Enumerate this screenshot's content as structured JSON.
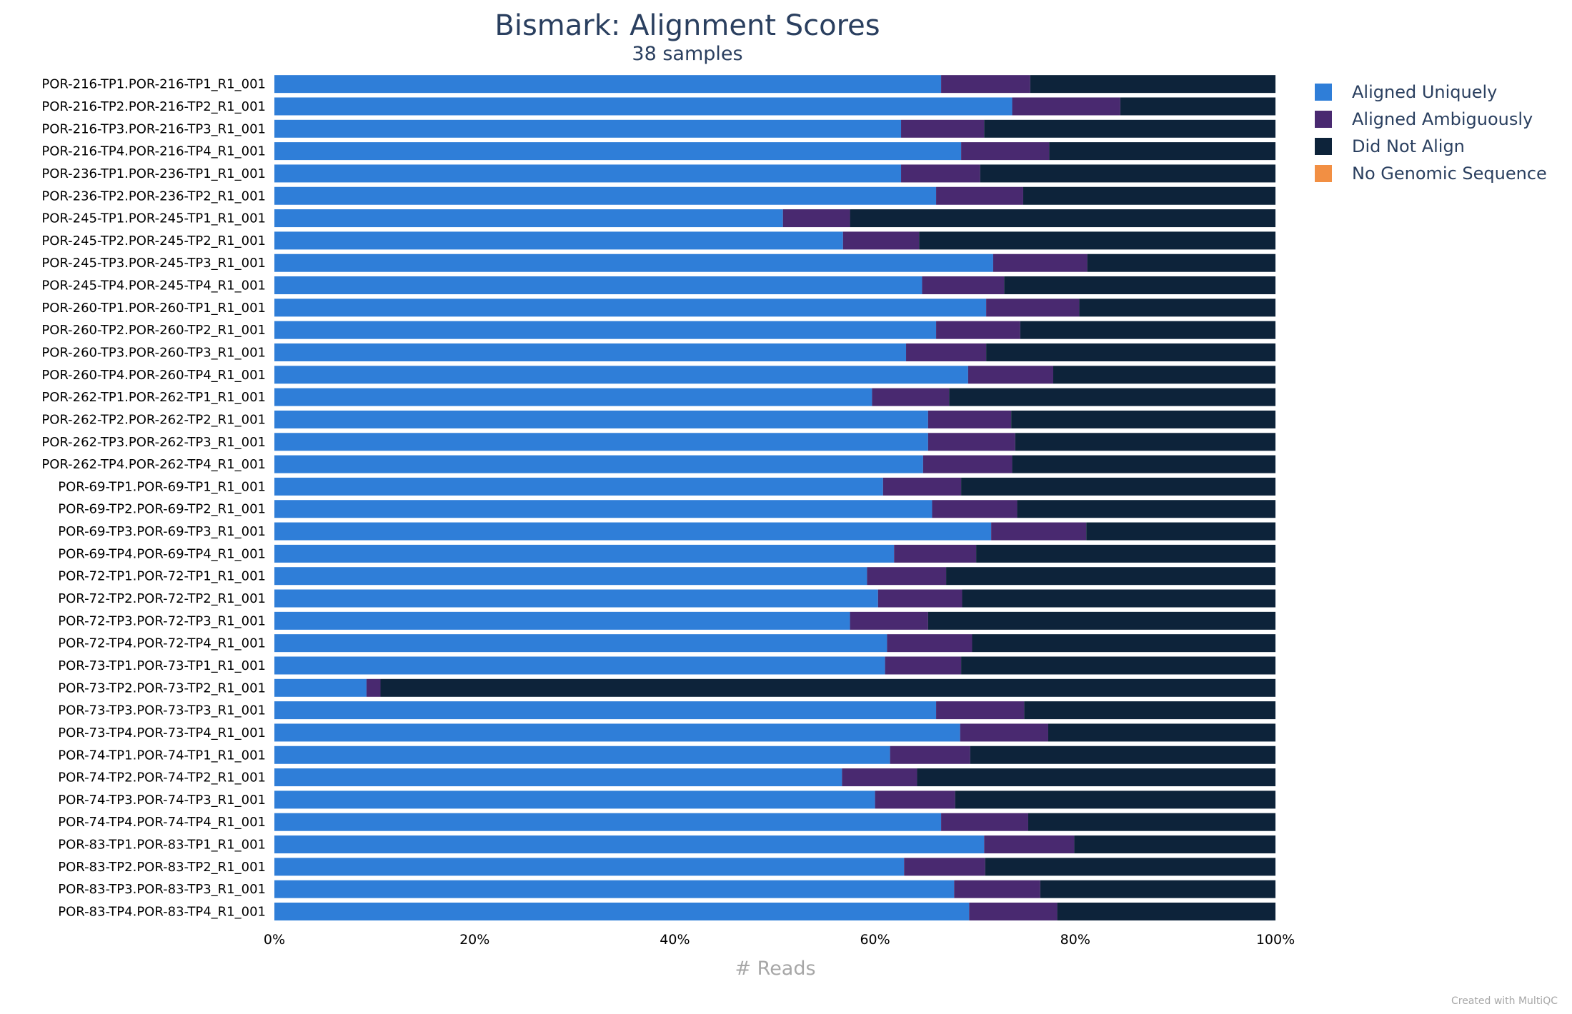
{
  "chart_data": {
    "type": "bar",
    "orientation": "horizontal",
    "stacked": true,
    "normalized": true,
    "title": "Bismark: Alignment Scores",
    "subtitle": "38 samples",
    "xlabel": "# Reads",
    "ylabel": "",
    "xlim": [
      0,
      100
    ],
    "xticks": [
      "0%",
      "20%",
      "40%",
      "60%",
      "80%",
      "100%"
    ],
    "legend_position": "top-right",
    "credit": "Created with MultiQC",
    "categories": [
      "POR-216-TP1.POR-216-TP1_R1_001",
      "POR-216-TP2.POR-216-TP2_R1_001",
      "POR-216-TP3.POR-216-TP3_R1_001",
      "POR-216-TP4.POR-216-TP4_R1_001",
      "POR-236-TP1.POR-236-TP1_R1_001",
      "POR-236-TP2.POR-236-TP2_R1_001",
      "POR-245-TP1.POR-245-TP1_R1_001",
      "POR-245-TP2.POR-245-TP2_R1_001",
      "POR-245-TP3.POR-245-TP3_R1_001",
      "POR-245-TP4.POR-245-TP4_R1_001",
      "POR-260-TP1.POR-260-TP1_R1_001",
      "POR-260-TP2.POR-260-TP2_R1_001",
      "POR-260-TP3.POR-260-TP3_R1_001",
      "POR-260-TP4.POR-260-TP4_R1_001",
      "POR-262-TP1.POR-262-TP1_R1_001",
      "POR-262-TP2.POR-262-TP2_R1_001",
      "POR-262-TP3.POR-262-TP3_R1_001",
      "POR-262-TP4.POR-262-TP4_R1_001",
      "POR-69-TP1.POR-69-TP1_R1_001",
      "POR-69-TP2.POR-69-TP2_R1_001",
      "POR-69-TP3.POR-69-TP3_R1_001",
      "POR-69-TP4.POR-69-TP4_R1_001",
      "POR-72-TP1.POR-72-TP1_R1_001",
      "POR-72-TP2.POR-72-TP2_R1_001",
      "POR-72-TP3.POR-72-TP3_R1_001",
      "POR-72-TP4.POR-72-TP4_R1_001",
      "POR-73-TP1.POR-73-TP1_R1_001",
      "POR-73-TP2.POR-73-TP2_R1_001",
      "POR-73-TP3.POR-73-TP3_R1_001",
      "POR-73-TP4.POR-73-TP4_R1_001",
      "POR-74-TP1.POR-74-TP1_R1_001",
      "POR-74-TP2.POR-74-TP2_R1_001",
      "POR-74-TP3.POR-74-TP3_R1_001",
      "POR-74-TP4.POR-74-TP4_R1_001",
      "POR-83-TP1.POR-83-TP1_R1_001",
      "POR-83-TP2.POR-83-TP2_R1_001",
      "POR-83-TP3.POR-83-TP3_R1_001",
      "POR-83-TP4.POR-83-TP4_R1_001"
    ],
    "series": [
      {
        "name": "Aligned Uniquely",
        "color": "#2f7ed8",
        "values": [
          66.6,
          73.7,
          62.6,
          68.6,
          62.6,
          66.1,
          50.8,
          56.8,
          71.8,
          64.7,
          71.1,
          66.1,
          63.1,
          69.3,
          59.7,
          65.3,
          65.3,
          64.8,
          60.8,
          65.7,
          71.6,
          61.9,
          59.2,
          60.3,
          57.5,
          61.2,
          61.0,
          9.2,
          66.1,
          68.5,
          61.5,
          56.7,
          60.0,
          66.6,
          70.9,
          62.9,
          67.9,
          69.4
        ]
      },
      {
        "name": "Aligned Ambiguously",
        "color": "#492970",
        "values": [
          8.9,
          10.8,
          8.3,
          8.8,
          7.9,
          8.7,
          6.7,
          7.6,
          9.4,
          8.2,
          9.3,
          8.4,
          8.0,
          8.5,
          7.7,
          8.3,
          8.7,
          8.9,
          7.8,
          8.5,
          9.5,
          8.2,
          7.9,
          8.4,
          7.8,
          8.5,
          7.6,
          1.4,
          8.8,
          8.8,
          8.0,
          7.5,
          8.0,
          8.7,
          9.0,
          8.1,
          8.6,
          8.8
        ]
      },
      {
        "name": "Did Not Align",
        "color": "#0d233a",
        "values": [
          24.5,
          15.5,
          29.1,
          22.6,
          29.5,
          25.2,
          42.5,
          35.6,
          18.8,
          27.1,
          19.6,
          25.5,
          28.9,
          22.2,
          32.6,
          26.4,
          26.0,
          26.3,
          31.4,
          25.8,
          18.9,
          29.9,
          32.9,
          31.3,
          34.7,
          30.3,
          31.4,
          89.4,
          25.1,
          22.7,
          30.5,
          35.8,
          32.0,
          24.7,
          20.1,
          29.0,
          23.5,
          21.8
        ]
      },
      {
        "name": "No Genomic Sequence",
        "color": "#f28f43",
        "values": [
          0,
          0,
          0,
          0,
          0,
          0,
          0,
          0,
          0,
          0,
          0,
          0,
          0,
          0,
          0,
          0,
          0,
          0,
          0,
          0,
          0,
          0,
          0,
          0,
          0,
          0,
          0,
          0,
          0,
          0,
          0,
          0,
          0,
          0,
          0,
          0,
          0,
          0
        ]
      }
    ]
  }
}
